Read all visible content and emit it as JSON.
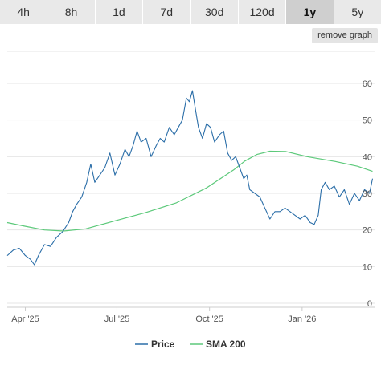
{
  "range_selector": {
    "buttons": [
      {
        "label": "4h",
        "active": false
      },
      {
        "label": "8h",
        "active": false
      },
      {
        "label": "1d",
        "active": false
      },
      {
        "label": "7d",
        "active": false
      },
      {
        "label": "30d",
        "active": false
      },
      {
        "label": "120d",
        "active": false
      },
      {
        "label": "1y",
        "active": true
      },
      {
        "label": "5y",
        "active": false
      }
    ]
  },
  "remove_graph_label": "remove graph",
  "chart_data": {
    "type": "line",
    "x_ticks": [
      "Apr '25",
      "Jul '25",
      "Oct '25",
      "Jan '26"
    ],
    "x_range": [
      "2025-03-14",
      "2026-03-14"
    ],
    "ylim": [
      0,
      60
    ],
    "y_ticks": [
      0,
      10,
      20,
      30,
      40,
      50,
      60
    ],
    "grid": true,
    "legend_position": "bottom-center",
    "series": [
      {
        "name": "Price",
        "color": "#2b6ea8",
        "points": [
          [
            "2025-03-14",
            13
          ],
          [
            "2025-03-20",
            14.5
          ],
          [
            "2025-03-26",
            15
          ],
          [
            "2025-04-01",
            13
          ],
          [
            "2025-04-06",
            12
          ],
          [
            "2025-04-10",
            10.5
          ],
          [
            "2025-04-14",
            13
          ],
          [
            "2025-04-20",
            16
          ],
          [
            "2025-04-26",
            15.5
          ],
          [
            "2025-05-02",
            18
          ],
          [
            "2025-05-08",
            19.5
          ],
          [
            "2025-05-14",
            22
          ],
          [
            "2025-05-18",
            25
          ],
          [
            "2025-05-22",
            27
          ],
          [
            "2025-05-27",
            29
          ],
          [
            "2025-06-01",
            33
          ],
          [
            "2025-06-05",
            38
          ],
          [
            "2025-06-09",
            33
          ],
          [
            "2025-06-14",
            35
          ],
          [
            "2025-06-19",
            37
          ],
          [
            "2025-06-24",
            41
          ],
          [
            "2025-06-29",
            35
          ],
          [
            "2025-07-04",
            38
          ],
          [
            "2025-07-09",
            42
          ],
          [
            "2025-07-13",
            40
          ],
          [
            "2025-07-17",
            43
          ],
          [
            "2025-07-21",
            47
          ],
          [
            "2025-07-25",
            44
          ],
          [
            "2025-07-30",
            45
          ],
          [
            "2025-08-04",
            40
          ],
          [
            "2025-08-09",
            43
          ],
          [
            "2025-08-13",
            45
          ],
          [
            "2025-08-17",
            44
          ],
          [
            "2025-08-22",
            48
          ],
          [
            "2025-08-27",
            46
          ],
          [
            "2025-08-31",
            48
          ],
          [
            "2025-09-04",
            50
          ],
          [
            "2025-09-08",
            56
          ],
          [
            "2025-09-11",
            55
          ],
          [
            "2025-09-14",
            58
          ],
          [
            "2025-09-17",
            53
          ],
          [
            "2025-09-20",
            48
          ],
          [
            "2025-09-24",
            45
          ],
          [
            "2025-09-28",
            49
          ],
          [
            "2025-10-02",
            48
          ],
          [
            "2025-10-06",
            44
          ],
          [
            "2025-10-11",
            46
          ],
          [
            "2025-10-15",
            47
          ],
          [
            "2025-10-19",
            41
          ],
          [
            "2025-10-23",
            39
          ],
          [
            "2025-10-27",
            40
          ],
          [
            "2025-10-31",
            37
          ],
          [
            "2025-11-04",
            34
          ],
          [
            "2025-11-07",
            35
          ],
          [
            "2025-11-10",
            31
          ],
          [
            "2025-11-15",
            30
          ],
          [
            "2025-11-20",
            29
          ],
          [
            "2025-11-25",
            26
          ],
          [
            "2025-11-30",
            23
          ],
          [
            "2025-12-05",
            25
          ],
          [
            "2025-12-10",
            25
          ],
          [
            "2025-12-15",
            26
          ],
          [
            "2025-12-20",
            25
          ],
          [
            "2025-12-25",
            24
          ],
          [
            "2025-12-30",
            23
          ],
          [
            "2026-01-04",
            24
          ],
          [
            "2026-01-09",
            22
          ],
          [
            "2026-01-13",
            21.5
          ],
          [
            "2026-01-17",
            24
          ],
          [
            "2026-01-20",
            31
          ],
          [
            "2026-01-24",
            33
          ],
          [
            "2026-01-28",
            31
          ],
          [
            "2026-02-02",
            32
          ],
          [
            "2026-02-07",
            29
          ],
          [
            "2026-02-12",
            31
          ],
          [
            "2026-02-17",
            27
          ],
          [
            "2026-02-22",
            30
          ],
          [
            "2026-02-27",
            28
          ],
          [
            "2026-03-04",
            31
          ],
          [
            "2026-03-09",
            30
          ],
          [
            "2026-03-12",
            34
          ]
        ]
      },
      {
        "name": "SMA 200",
        "color": "#5cc97a",
        "points": [
          [
            "2025-03-14",
            22
          ],
          [
            "2025-04-01",
            21
          ],
          [
            "2025-04-20",
            20
          ],
          [
            "2025-05-09",
            19.7
          ],
          [
            "2025-05-31",
            20.3
          ],
          [
            "2025-06-29",
            22.5
          ],
          [
            "2025-07-29",
            24.7
          ],
          [
            "2025-08-29",
            27.4
          ],
          [
            "2025-09-28",
            31.5
          ],
          [
            "2025-10-25",
            36.4
          ],
          [
            "2025-11-05",
            38.8
          ],
          [
            "2025-11-17",
            40.6
          ],
          [
            "2025-11-30",
            41.5
          ],
          [
            "2025-12-16",
            41.4
          ],
          [
            "2026-01-06",
            40
          ],
          [
            "2026-02-03",
            38.7
          ],
          [
            "2026-02-25",
            37.4
          ],
          [
            "2026-03-12",
            36
          ]
        ]
      }
    ]
  }
}
